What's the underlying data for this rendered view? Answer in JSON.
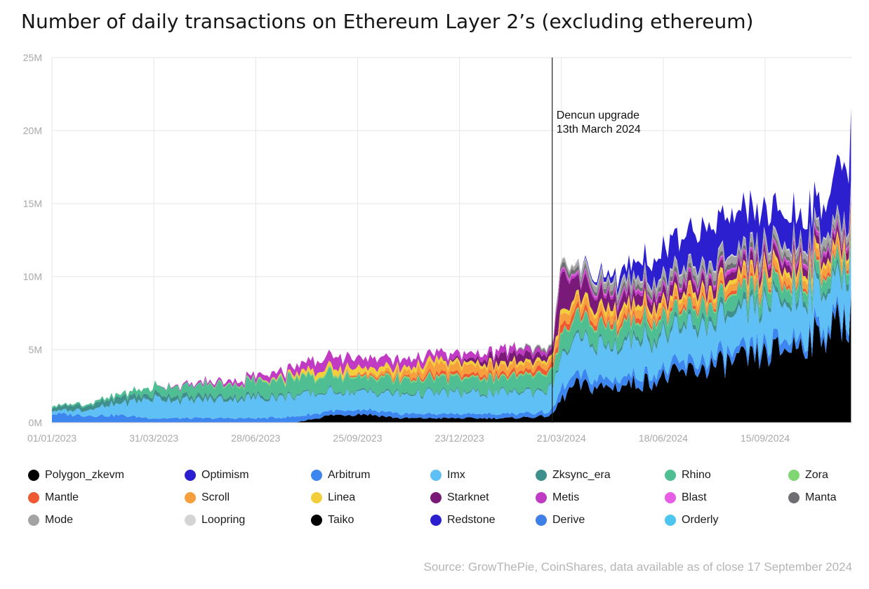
{
  "title": "Number of daily transactions on Ethereum Layer 2’s (excluding ethereum)",
  "source": "Source: GrowThePie, CoinShares, data available as of close 17 September 2024",
  "chart_data": {
    "type": "area",
    "stacked": true,
    "title": "Number of daily transactions on Ethereum Layer 2’s (excluding ethereum)",
    "xlabel": "",
    "ylabel": "",
    "xlim": [
      "2023-01-01",
      "2024-11-30"
    ],
    "ylim": [
      0,
      25
    ],
    "grid": true,
    "legend_position": "bottom",
    "y_ticks": [
      "0M",
      "5M",
      "10M",
      "15M",
      "20M",
      "25M"
    ],
    "y_tick_values": [
      0,
      5,
      10,
      15,
      20,
      25
    ],
    "x_ticks": [
      "01/01/2023",
      "31/03/2023",
      "28/06/2023",
      "25/09/2023",
      "23/12/2023",
      "21/03/2024",
      "18/06/2024",
      "15/09/2024"
    ],
    "x_tick_dates": [
      "2023-01-01",
      "2023-03-31",
      "2023-06-28",
      "2023-09-25",
      "2023-12-23",
      "2024-03-21",
      "2024-06-18",
      "2024-09-15"
    ],
    "annotations": [
      {
        "date": "2024-03-13",
        "text_line1": "Dencun upgrade",
        "text_line2": "13th March 2024"
      }
    ],
    "x": [
      "2023-01-01",
      "2023-02-01",
      "2023-03-01",
      "2023-04-01",
      "2023-05-01",
      "2023-06-01",
      "2023-07-01",
      "2023-08-01",
      "2023-09-01",
      "2023-10-01",
      "2023-11-01",
      "2023-12-01",
      "2024-01-01",
      "2024-02-01",
      "2024-03-01",
      "2024-03-13",
      "2024-03-20",
      "2024-04-01",
      "2024-05-01",
      "2024-06-01",
      "2024-07-01",
      "2024-08-01",
      "2024-09-01",
      "2024-10-01",
      "2024-11-01",
      "2024-11-30"
    ],
    "series": [
      {
        "name": "Polygon_zkevm",
        "color": "#000000",
        "values": [
          0,
          0,
          0,
          0,
          0,
          0,
          0,
          0,
          0,
          0,
          0,
          0,
          0,
          0,
          0,
          0,
          0,
          0,
          0,
          0,
          0,
          0,
          0,
          0,
          0,
          0
        ]
      },
      {
        "name": "Taiko",
        "color": "#000000",
        "values": [
          0,
          0,
          0,
          0,
          0,
          0,
          0,
          0,
          0.5,
          0.6,
          0.3,
          0.3,
          0.3,
          0.3,
          0.4,
          0.5,
          1.5,
          2.5,
          2.4,
          2.8,
          3.3,
          3.9,
          4.3,
          5.0,
          6.0,
          7.3
        ]
      },
      {
        "name": "Arbitrum",
        "color": "#3d86f0",
        "values": [
          0.6,
          0.5,
          0.5,
          0.3,
          0.3,
          0.3,
          0.3,
          0.4,
          0.3,
          0.3,
          0.3,
          0.3,
          0.3,
          0.3,
          0.3,
          0.3,
          0.7,
          0.6,
          0.6,
          0.6,
          0.6,
          0.6,
          0.6,
          0.6,
          0.6,
          0.6
        ]
      },
      {
        "name": "Imx",
        "color": "#5ec0f5",
        "values": [
          0.2,
          0.4,
          0.8,
          1.4,
          1.2,
          1.3,
          1.4,
          1.4,
          1.3,
          1.2,
          1.3,
          1.4,
          1.4,
          1.4,
          1.5,
          1.5,
          2.1,
          2.2,
          2.3,
          2.3,
          2.4,
          2.4,
          2.5,
          2.6,
          2.6,
          2.7
        ]
      },
      {
        "name": "Zksync_era",
        "color": "#3f8f8c",
        "values": [
          0.3,
          0.3,
          0.4,
          0.3,
          0.3,
          0.2,
          0.2,
          0.1,
          0.1,
          0.1,
          0.1,
          0.1,
          0.1,
          0.1,
          0.1,
          0.1,
          0.2,
          0.2,
          0.2,
          0.3,
          0.3,
          0.4,
          0.4,
          0.4,
          0.4,
          0.4
        ]
      },
      {
        "name": "Rhino",
        "color": "#4fbf93",
        "values": [
          0.1,
          0.1,
          0.2,
          0.5,
          0.7,
          0.8,
          0.9,
          1.1,
          1.1,
          0.9,
          0.9,
          0.9,
          0.9,
          1.0,
          1.1,
          1.1,
          1.3,
          1.2,
          1.1,
          1.0,
          0.9,
          0.9,
          0.9,
          0.8,
          0.8,
          0.8
        ]
      },
      {
        "name": "Zora",
        "color": "#7fd673",
        "values": [
          0,
          0,
          0,
          0,
          0,
          0.1,
          0.1,
          0.1,
          0.1,
          0.1,
          0.1,
          0.1,
          0.1,
          0.1,
          0.1,
          0.1,
          0.1,
          0.1,
          0.1,
          0.1,
          0.1,
          0.1,
          0.1,
          0.1,
          0.1,
          0.1
        ]
      },
      {
        "name": "Mantle",
        "color": "#f05a32",
        "values": [
          0,
          0,
          0,
          0,
          0,
          0,
          0,
          0,
          0,
          0.1,
          0.1,
          0.2,
          0.2,
          0.2,
          0.3,
          0.3,
          0.5,
          0.4,
          0.3,
          0.3,
          0.2,
          0.2,
          0.2,
          0.2,
          0.2,
          0.2
        ]
      },
      {
        "name": "Scroll",
        "color": "#f5a03c",
        "values": [
          0,
          0,
          0,
          0,
          0,
          0,
          0,
          0,
          0,
          0.1,
          0.3,
          0.6,
          0.6,
          0.5,
          0.4,
          0.4,
          0.6,
          0.6,
          0.5,
          0.5,
          0.5,
          0.5,
          0.6,
          0.5,
          0.5,
          0.5
        ]
      },
      {
        "name": "Linea",
        "color": "#f2cf3a",
        "values": [
          0,
          0,
          0,
          0,
          0,
          0,
          0,
          0.2,
          0.4,
          0.4,
          0.3,
          0.3,
          0.2,
          0.2,
          0.2,
          0.2,
          0.3,
          0.3,
          0.3,
          0.3,
          0.3,
          0.3,
          0.3,
          0.3,
          0.3,
          0.3
        ]
      },
      {
        "name": "Starknet",
        "color": "#7a1a78",
        "values": [
          0,
          0,
          0,
          0,
          0,
          0,
          0,
          0,
          0,
          0,
          0,
          0,
          0.2,
          0.6,
          0.4,
          0.3,
          2.5,
          1.2,
          0.8,
          0.6,
          0.6,
          0.5,
          0.5,
          0.5,
          0.5,
          0.5
        ]
      },
      {
        "name": "Metis",
        "color": "#c03ac4",
        "values": [
          0,
          0,
          0,
          0,
          0.1,
          0.2,
          0.3,
          0.5,
          0.8,
          0.7,
          0.6,
          0.5,
          0.4,
          0.4,
          0.3,
          0.2,
          0.2,
          0.2,
          0.2,
          0.2,
          0.2,
          0.2,
          0.2,
          0.2,
          0.2,
          0.2
        ]
      },
      {
        "name": "Blast",
        "color": "#e85de6",
        "values": [
          0,
          0,
          0,
          0,
          0,
          0,
          0,
          0,
          0,
          0,
          0,
          0,
          0,
          0,
          0,
          0,
          0.1,
          0.1,
          0.1,
          0.1,
          0.1,
          0.1,
          0.1,
          0.1,
          0.1,
          0.1
        ]
      },
      {
        "name": "Manta",
        "color": "#6e6e72",
        "values": [
          0,
          0,
          0,
          0,
          0,
          0,
          0,
          0,
          0,
          0,
          0,
          0,
          0,
          0,
          0.1,
          0.1,
          0.3,
          0.3,
          0.3,
          0.3,
          0.3,
          0.3,
          0.3,
          0.3,
          0.3,
          0.3
        ]
      },
      {
        "name": "Mode",
        "color": "#a3a3a3",
        "values": [
          0,
          0,
          0,
          0,
          0,
          0,
          0,
          0,
          0,
          0,
          0,
          0,
          0,
          0,
          0.1,
          0.1,
          0.2,
          0.3,
          0.4,
          0.4,
          0.5,
          0.5,
          0.5,
          0.5,
          0.5,
          0.5
        ]
      },
      {
        "name": "Loopring",
        "color": "#d4d4d4",
        "values": [
          0,
          0,
          0,
          0,
          0,
          0,
          0,
          0,
          0,
          0,
          0,
          0,
          0,
          0,
          0,
          0,
          0.1,
          0.1,
          0.1,
          0.1,
          0.1,
          0.1,
          0.1,
          0.1,
          0.1,
          0.1
        ]
      },
      {
        "name": "Redstone",
        "color": "#2c1fd0",
        "values": [
          0,
          0,
          0,
          0,
          0,
          0,
          0,
          0,
          0,
          0,
          0,
          0,
          0,
          0,
          0,
          0,
          0,
          0,
          0.3,
          1.2,
          2.1,
          2.6,
          2.6,
          2.0,
          1.8,
          4.3
        ]
      },
      {
        "name": "Derive",
        "color": "#3e7fe8",
        "values": [
          0,
          0,
          0,
          0,
          0,
          0,
          0,
          0,
          0,
          0,
          0,
          0,
          0,
          0,
          0,
          0,
          0,
          0,
          0,
          0,
          0,
          0,
          0,
          0,
          0,
          0
        ]
      },
      {
        "name": "Orderly",
        "color": "#4cc6ee",
        "values": [
          0,
          0,
          0,
          0,
          0,
          0,
          0,
          0,
          0,
          0,
          0,
          0,
          0,
          0,
          0,
          0,
          0,
          0,
          0,
          0,
          0,
          0,
          0,
          0,
          0,
          0
        ]
      },
      {
        "name": "Optimism",
        "color": "#2a1fcf",
        "values": [
          0,
          0,
          0,
          0,
          0,
          0,
          0,
          0,
          0,
          0,
          0,
          0,
          0,
          0,
          0,
          0,
          0,
          0,
          0,
          0,
          0,
          0,
          0,
          0,
          0,
          0
        ]
      }
    ],
    "legend": [
      "Polygon_zkevm",
      "Optimism",
      "Arbitrum",
      "Imx",
      "Zksync_era",
      "Rhino",
      "Zora",
      "Mantle",
      "Scroll",
      "Linea",
      "Starknet",
      "Metis",
      "Blast",
      "Manta",
      "Mode",
      "Loopring",
      "Taiko",
      "Redstone",
      "Derive",
      "Orderly"
    ]
  }
}
